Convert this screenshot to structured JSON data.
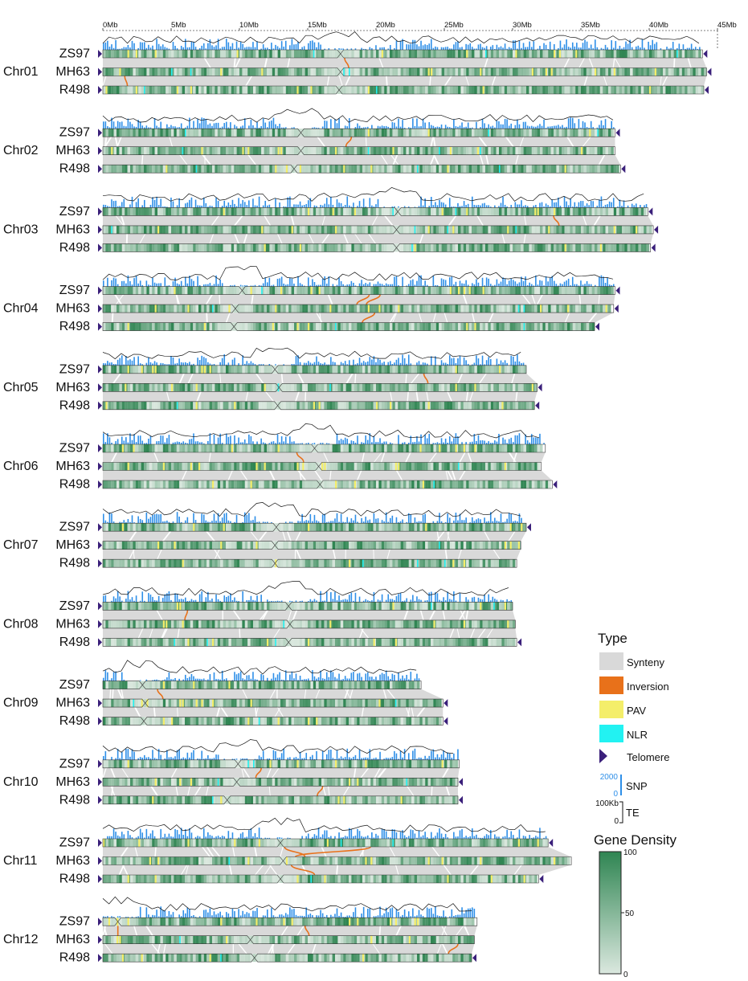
{
  "chart_data": {
    "type": "synteny-karyotype",
    "title": "",
    "x_unit": "Mb",
    "xlim": [
      0,
      45
    ],
    "x_ticks": [
      {
        "value": 0,
        "label": "0Mb"
      },
      {
        "value": 5,
        "label": "5Mb"
      },
      {
        "value": 10,
        "label": "10Mb"
      },
      {
        "value": 15,
        "label": "15Mb"
      },
      {
        "value": 20,
        "label": "20Mb"
      },
      {
        "value": 25,
        "label": "25Mb"
      },
      {
        "value": 30,
        "label": "30Mb"
      },
      {
        "value": 35,
        "label": "35Mb"
      },
      {
        "value": 40,
        "label": "40Mb"
      },
      {
        "value": 45,
        "label": "45Mb"
      }
    ],
    "genomes": [
      "ZS97",
      "MH63",
      "R498"
    ],
    "chromosomes": [
      {
        "name": "Chr01",
        "lengths": [
          43.9,
          44.2,
          44.0
        ],
        "centromeres": [
          17.4,
          17.4,
          17.3
        ],
        "inversions": [
          {
            "from": 17.7,
            "to": 18.0
          },
          {
            "from": 1.6,
            "to": 1.8
          }
        ],
        "telomeres": [
          "left-right",
          "left-right",
          "left-right"
        ]
      },
      {
        "name": "Chr02",
        "lengths": [
          37.5,
          37.5,
          37.9
        ],
        "centromeres": [
          14.5,
          14.5,
          14.0
        ],
        "inversions": [
          {
            "from": 18.2,
            "to": 17.8
          }
        ],
        "telomeres": [
          "left-right",
          "left",
          "left-right"
        ]
      },
      {
        "name": "Chr03",
        "lengths": [
          39.9,
          40.3,
          40.1
        ],
        "centromeres": [
          21.6,
          21.5,
          21.5
        ],
        "inversions": [
          {
            "from": 33.0,
            "to": 33.4
          }
        ],
        "telomeres": [
          "left-right",
          "left-right",
          "left-right"
        ]
      },
      {
        "name": "Chr04",
        "lengths": [
          37.5,
          37.4,
          36.0
        ],
        "centromeres": [
          10.2,
          9.7,
          9.6
        ],
        "inversions": [
          {
            "from": 19.5,
            "to": 18.6
          },
          {
            "from": 19.9,
            "to": 19.0
          },
          {
            "from": 20.3,
            "to": 19.3
          }
        ],
        "telomeres": [
          "left-right",
          "left-right",
          "left-right"
        ]
      },
      {
        "name": "Chr05",
        "lengths": [
          31.0,
          31.8,
          31.6
        ],
        "centromeres": [
          12.6,
          12.9,
          12.8
        ],
        "inversions": [
          {
            "from": 23.5,
            "to": 23.8
          }
        ],
        "telomeres": [
          "left",
          "left-right",
          "left-right"
        ]
      },
      {
        "name": "Chr06",
        "lengths": [
          32.4,
          32.1,
          32.9
        ],
        "centromeres": [
          15.5,
          15.8,
          15.9
        ],
        "inversions": [
          {
            "from": 14.2,
            "to": 14.7
          }
        ],
        "telomeres": [
          "left",
          "left",
          "left-right"
        ]
      },
      {
        "name": "Chr07",
        "lengths": [
          31.0,
          30.6,
          30.3
        ],
        "centromeres": [
          12.7,
          12.6,
          12.6
        ],
        "inversions": [],
        "telomeres": [
          "left-right",
          "left",
          "left"
        ]
      },
      {
        "name": "Chr08",
        "lengths": [
          30.0,
          30.2,
          30.3
        ],
        "centromeres": [
          13.6,
          13.7,
          13.6
        ],
        "inversions": [
          {
            "from": 6.2,
            "to": 6.0
          }
        ],
        "telomeres": [
          "left",
          "left",
          "left-right"
        ]
      },
      {
        "name": "Chr09",
        "lengths": [
          23.3,
          24.9,
          24.9
        ],
        "centromeres": [
          2.9,
          3.1,
          3.0
        ],
        "inversions": [
          {
            "from": 4.0,
            "to": 4.4
          }
        ],
        "telomeres": [
          "none",
          "left-right",
          "left-right"
        ]
      },
      {
        "name": "Chr10",
        "lengths": [
          26.1,
          26.0,
          26.0
        ],
        "centromeres": [
          9.9,
          9.8,
          9.1
        ],
        "inversions": [
          {
            "from": 11.6,
            "to": 11.2
          },
          {
            "from": 16.1,
            "to": 15.7
          }
        ],
        "telomeres": [
          "left",
          "left-right",
          "left-right"
        ]
      },
      {
        "name": "Chr11",
        "lengths": [
          32.6,
          34.3,
          31.9
        ],
        "centromeres": [
          13.0,
          13.2,
          13.0
        ],
        "inversions": [
          {
            "from": 13.3,
            "to": 14.8
          },
          {
            "from": 13.8,
            "to": 15.5
          },
          {
            "from": 19.6,
            "to": 14.1
          }
        ],
        "telomeres": [
          "left-right",
          "left",
          "left-right"
        ]
      },
      {
        "name": "Chr12",
        "lengths": [
          27.4,
          27.2,
          27.0
        ],
        "centromeres": [
          1.1,
          10.8,
          11.1
        ],
        "inversions": [
          {
            "from": 1.1,
            "to": 1.1
          },
          {
            "from": 26.0,
            "to": 25.3
          },
          {
            "from": 14.8,
            "to": 15.1
          }
        ],
        "telomeres": [
          "left",
          "left",
          "left-right"
        ]
      }
    ],
    "legend": {
      "title": "Type",
      "items": [
        {
          "key": "synteny",
          "label": "Synteny",
          "color": "#d9d9d9"
        },
        {
          "key": "inversion",
          "label": "Inversion",
          "color": "#e8711a"
        },
        {
          "key": "pav",
          "label": "PAV",
          "color": "#f4ee6a"
        },
        {
          "key": "nlr",
          "label": "NLR",
          "color": "#22f2f2"
        },
        {
          "key": "telomere",
          "label": "Telomere",
          "color": "#3a1f7a"
        }
      ],
      "snp": {
        "label": "SNP",
        "max_label": "2000",
        "min_label": "0",
        "color": "#2e8fe8"
      },
      "te": {
        "label": "TE",
        "max_label": "100Kb",
        "min_label": "0",
        "color": "#111111"
      },
      "gene_density": {
        "title": "Gene Density",
        "max_label": "100",
        "mid_label": "50",
        "min_label": "0",
        "color_high": "#2f8552",
        "color_low": "#dbe8df"
      }
    }
  }
}
